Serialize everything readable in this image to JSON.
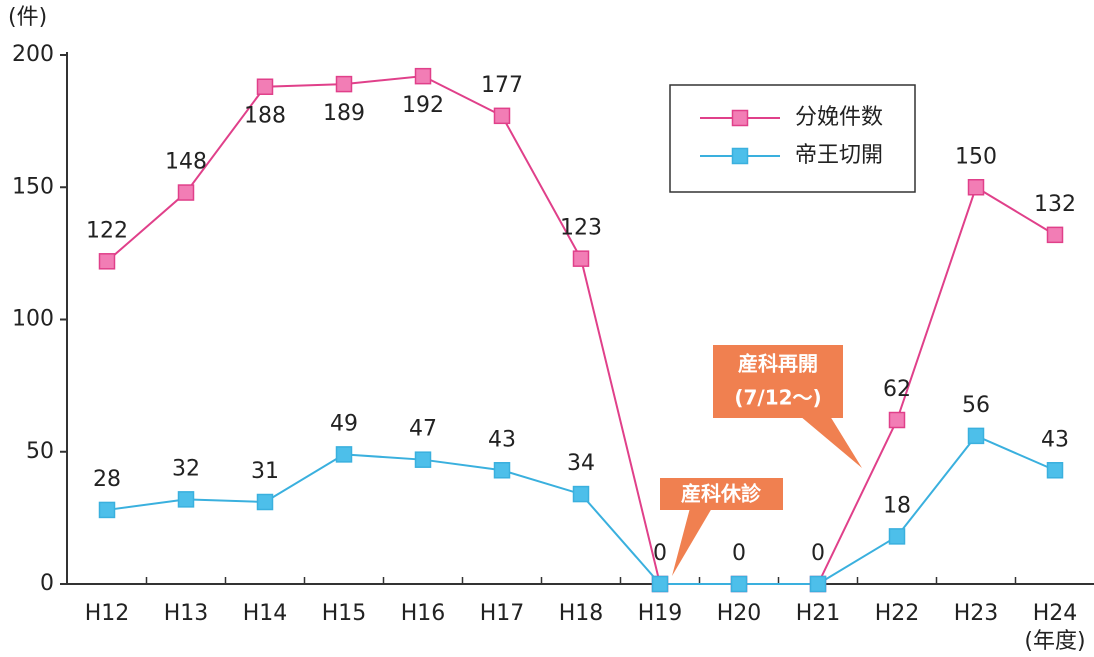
{
  "chart_data": {
    "type": "line",
    "y_unit": "(件)",
    "x_unit": "(年度)",
    "categories": [
      "H12",
      "H13",
      "H14",
      "H15",
      "H16",
      "H17",
      "H18",
      "H19",
      "H20",
      "H21",
      "H22",
      "H23",
      "H24"
    ],
    "series": [
      {
        "name": "分娩件数",
        "color": "#e0408a",
        "marker_color": "#f27db5",
        "values": [
          122,
          148,
          188,
          189,
          192,
          177,
          123,
          0,
          0,
          0,
          62,
          150,
          132
        ]
      },
      {
        "name": "帝王切開",
        "color": "#3ab0de",
        "marker_color": "#4dbfea",
        "values": [
          28,
          32,
          31,
          49,
          47,
          43,
          34,
          0,
          0,
          0,
          18,
          56,
          43
        ]
      }
    ],
    "ylim": [
      0,
      200
    ],
    "yticks": [
      0,
      50,
      100,
      150,
      200
    ],
    "annotations": [
      "産科休診",
      "産科再開",
      "(7/12～)"
    ],
    "legend": "upper-right"
  }
}
